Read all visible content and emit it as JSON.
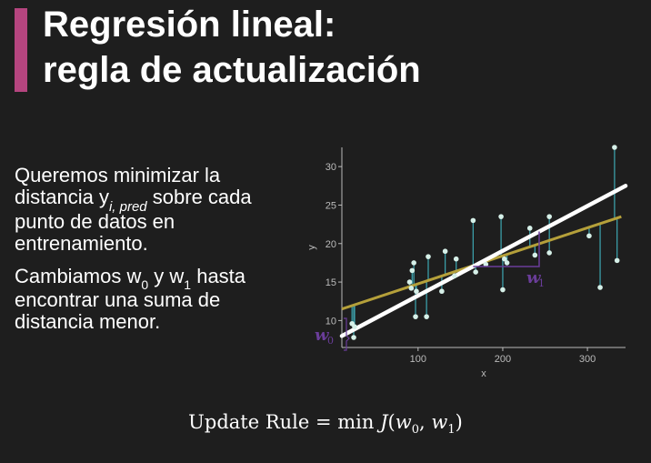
{
  "slide": {
    "title_line1": "Regresión lineal:",
    "title_line2": "regla de actualización",
    "accent_color": "#b5457f"
  },
  "body": {
    "p1_a": "Queremos minimizar la distancia y",
    "p1_sub": "i, pred",
    "p1_b": " sobre cada punto de datos en entrenamiento.",
    "p2_a": "Cambiamos w",
    "p2_sub0": "0",
    "p2_b": " y w",
    "p2_sub1": "1",
    "p2_c": " hasta encontrar una suma de distancia menor."
  },
  "formula": {
    "label": "Update Rule = ",
    "min": "min ",
    "J": "J",
    "open": "(",
    "w0": "w",
    "w0_sub": "0",
    "comma": ", ",
    "w1": "w",
    "w1_sub": "1",
    "close": ")"
  },
  "chart_data": {
    "type": "scatter",
    "xlabel": "x",
    "ylabel": "y",
    "x_ticks": [
      100,
      200,
      300
    ],
    "y_ticks": [
      10,
      15,
      20,
      25,
      30
    ],
    "xlim": [
      10,
      345
    ],
    "ylim": [
      6.5,
      32.5
    ],
    "points": [
      {
        "x": 22,
        "y": 9.6
      },
      {
        "x": 24,
        "y": 7.8
      },
      {
        "x": 25,
        "y": 9.2
      },
      {
        "x": 90,
        "y": 15.0
      },
      {
        "x": 92,
        "y": 14.2
      },
      {
        "x": 93,
        "y": 16.5
      },
      {
        "x": 95,
        "y": 17.5
      },
      {
        "x": 98,
        "y": 13.8
      },
      {
        "x": 97,
        "y": 10.5
      },
      {
        "x": 110,
        "y": 10.5
      },
      {
        "x": 112,
        "y": 18.3
      },
      {
        "x": 128,
        "y": 13.8
      },
      {
        "x": 132,
        "y": 19.0
      },
      {
        "x": 143,
        "y": 15.8
      },
      {
        "x": 145,
        "y": 18.0
      },
      {
        "x": 165,
        "y": 23.0
      },
      {
        "x": 168,
        "y": 16.3
      },
      {
        "x": 180,
        "y": 17.3
      },
      {
        "x": 198,
        "y": 23.5
      },
      {
        "x": 200,
        "y": 14.0
      },
      {
        "x": 202,
        "y": 18.0
      },
      {
        "x": 205,
        "y": 17.5
      },
      {
        "x": 232,
        "y": 22.0
      },
      {
        "x": 238,
        "y": 18.5
      },
      {
        "x": 255,
        "y": 23.5
      },
      {
        "x": 255,
        "y": 18.8
      },
      {
        "x": 302,
        "y": 21.0
      },
      {
        "x": 315,
        "y": 14.3
      },
      {
        "x": 332,
        "y": 32.5
      },
      {
        "x": 335,
        "y": 17.8
      }
    ],
    "fit_line": {
      "color": "#b5a03a",
      "x": [
        10,
        340
      ],
      "y": [
        11.5,
        23.5
      ]
    },
    "update_line": {
      "color": "#ffffff",
      "x": [
        10,
        345
      ],
      "y": [
        8.0,
        27.5
      ]
    },
    "annotations": {
      "w0": "w",
      "w0_sub": "0",
      "w1": "w",
      "w1_sub": "1",
      "color": "#6a3d9a"
    },
    "colors": {
      "point": "#d6f0e8",
      "residual": "#3b9ea8",
      "axis": "#bbbbbb"
    }
  }
}
